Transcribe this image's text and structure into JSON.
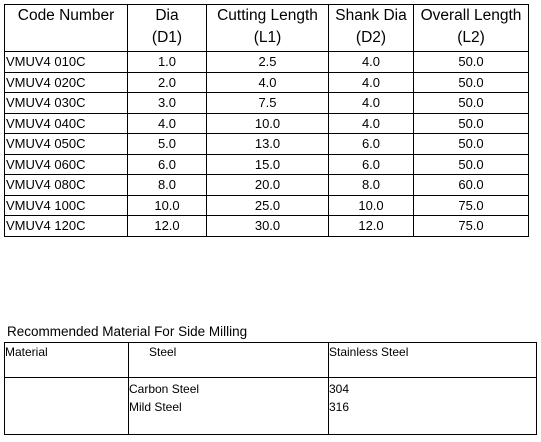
{
  "table": {
    "header": [
      [
        "Code Number"
      ],
      [
        "Dia",
        "(D1)"
      ],
      [
        "Cutting Length",
        "(L1)"
      ],
      [
        "Shank Dia",
        "(D2)"
      ],
      [
        "Overall Length",
        "(L2)"
      ]
    ],
    "rows": [
      [
        "VMUV4 010C",
        "1.0",
        "2.5",
        "4.0",
        "50.0"
      ],
      [
        "VMUV4 020C",
        "2.0",
        "4.0",
        "4.0",
        "50.0"
      ],
      [
        "VMUV4 030C",
        "3.0",
        "7.5",
        "4.0",
        "50.0"
      ],
      [
        "VMUV4 040C",
        "4.0",
        "10.0",
        "4.0",
        "50.0"
      ],
      [
        "VMUV4 050C",
        "5.0",
        "13.0",
        "6.0",
        "50.0"
      ],
      [
        "VMUV4 060C",
        "6.0",
        "15.0",
        "6.0",
        "50.0"
      ],
      [
        "VMUV4 080C",
        "8.0",
        "20.0",
        "8.0",
        "60.0"
      ],
      [
        "VMUV4 100C",
        "10.0",
        "25.0",
        "10.0",
        "75.0"
      ],
      [
        "VMUV4 120C",
        "12.0",
        "30.0",
        "12.0",
        "75.0"
      ]
    ]
  },
  "materials": {
    "caption": "Recommended Material For Side Milling",
    "header": [
      "Material",
      "Steel",
      "Stainless Steel"
    ],
    "rows": [
      {
        "steel": [
          "Carbon Steel",
          "Mild Steel"
        ],
        "stainless_steel": [
          "304",
          "316"
        ]
      }
    ]
  }
}
